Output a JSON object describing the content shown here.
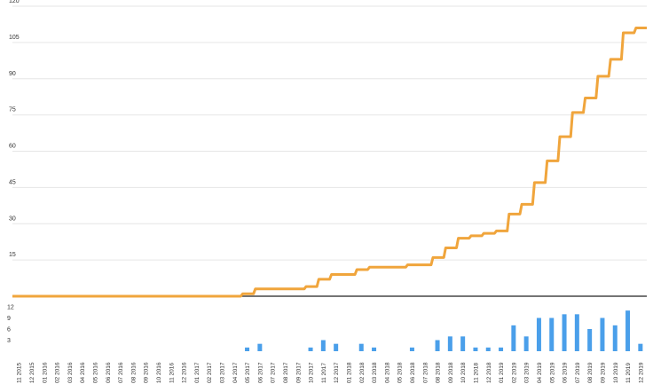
{
  "colors": {
    "line": "#F0A53C",
    "bar": "#4A9FEA",
    "grid": "#E6E6E6",
    "axis": "#222222",
    "tick_text": "#333333"
  },
  "chart_data": [
    {
      "type": "line",
      "chart": "cumulative",
      "y_ticks": [
        15,
        30,
        45,
        60,
        75,
        90,
        105,
        120
      ],
      "y_tick_labels": [
        "15",
        "30",
        "45",
        "60",
        "75",
        "90",
        "105",
        "120"
      ],
      "ylim": [
        0,
        120
      ],
      "grid": true,
      "x": [
        "11 2015",
        "12 2015",
        "01 2016",
        "02 2016",
        "03 2016",
        "04 2016",
        "05 2016",
        "06 2016",
        "07 2016",
        "08 2016",
        "09 2016",
        "10 2016",
        "11 2016",
        "12 2016",
        "01 2017",
        "02 2017",
        "03 2017",
        "04 2017",
        "05 2017",
        "06 2017",
        "07 2017",
        "08 2017",
        "09 2017",
        "10 2017",
        "11 2017",
        "12 2017",
        "01 2018",
        "02 2018",
        "03 2018",
        "04 2018",
        "05 2018",
        "06 2018",
        "07 2018",
        "08 2018",
        "09 2018",
        "10 2018",
        "11 2018",
        "12 2018",
        "01 2019",
        "02 2019",
        "03 2019",
        "04 2019",
        "05 2019",
        "06 2019",
        "07 2019",
        "08 2019",
        "09 2019",
        "10 2019",
        "11 2019",
        "12 2019"
      ],
      "values": [
        0,
        0,
        0,
        0,
        0,
        0,
        0,
        0,
        0,
        0,
        0,
        0,
        0,
        0,
        0,
        0,
        0,
        0,
        1,
        3,
        3,
        3,
        3,
        4,
        7,
        9,
        9,
        11,
        12,
        12,
        12,
        13,
        13,
        16,
        20,
        24,
        25,
        26,
        27,
        34,
        38,
        47,
        56,
        66,
        76,
        82,
        91,
        98,
        109,
        111
      ]
    },
    {
      "type": "bar",
      "chart": "monthly",
      "y_ticks": [
        3,
        6,
        9,
        12
      ],
      "y_tick_labels": [
        "3",
        "6",
        "9",
        "12"
      ],
      "ylim": [
        0,
        12.5
      ],
      "categories": [
        "11 2015",
        "12 2015",
        "01 2016",
        "02 2016",
        "03 2016",
        "04 2016",
        "05 2016",
        "06 2016",
        "07 2016",
        "08 2016",
        "09 2016",
        "10 2016",
        "11 2016",
        "12 2016",
        "01 2017",
        "02 2017",
        "03 2017",
        "04 2017",
        "05 2017",
        "06 2017",
        "07 2017",
        "08 2017",
        "09 2017",
        "10 2017",
        "11 2017",
        "12 2017",
        "01 2018",
        "02 2018",
        "03 2018",
        "04 2018",
        "05 2018",
        "06 2018",
        "07 2018",
        "08 2018",
        "09 2018",
        "10 2018",
        "11 2018",
        "12 2018",
        "01 2019",
        "02 2019",
        "03 2019",
        "04 2019",
        "05 2019",
        "06 2019",
        "07 2019",
        "08 2019",
        "09 2019",
        "10 2019",
        "11 2019",
        "12 2019"
      ],
      "values": [
        0,
        0,
        0,
        0,
        0,
        0,
        0,
        0,
        0,
        0,
        0,
        0,
        0,
        0,
        0,
        0,
        0,
        0,
        1,
        2,
        0,
        0,
        0,
        1,
        3,
        2,
        0,
        2,
        1,
        0,
        0,
        1,
        0,
        3,
        4,
        4,
        1,
        1,
        1,
        7,
        4,
        9,
        9,
        10,
        10,
        6,
        9,
        7,
        11,
        2
      ]
    }
  ]
}
